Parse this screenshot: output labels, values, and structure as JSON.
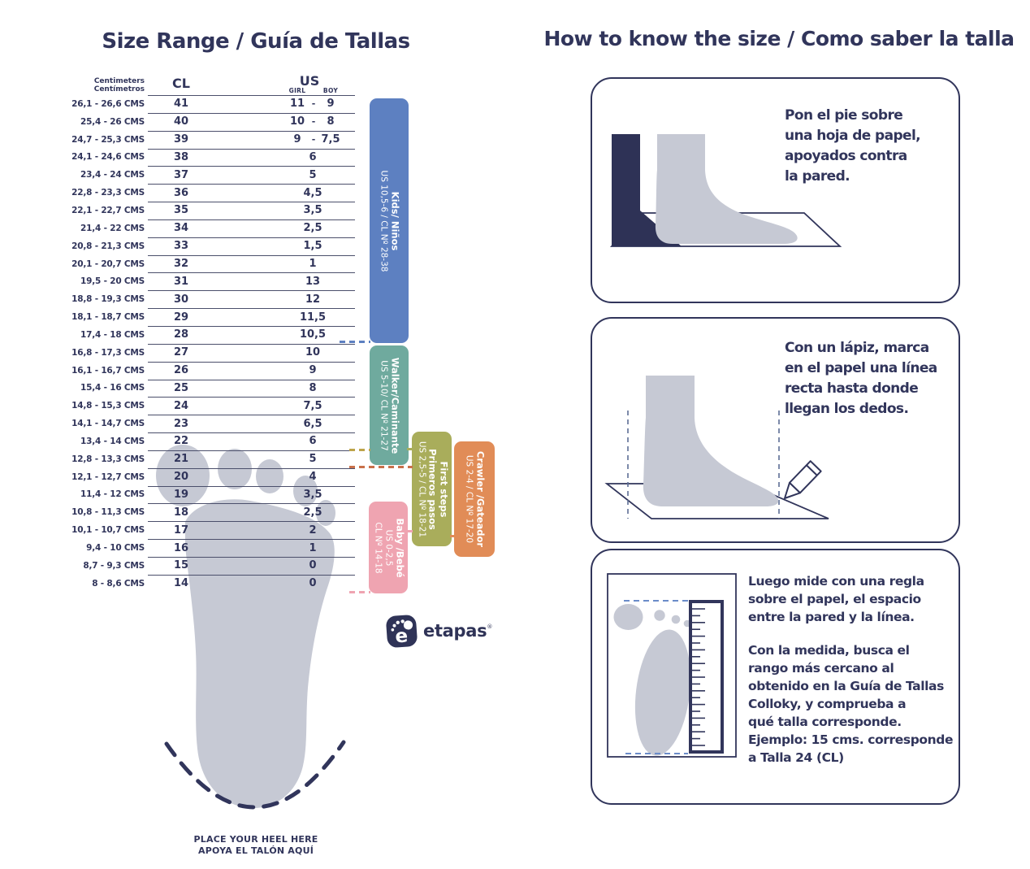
{
  "left": {
    "title": "Size Range / Guía de Tallas",
    "table": {
      "header": {
        "cm_en": "Centimeters",
        "cm_es": "Centímetros",
        "cl": "CL",
        "us": "US",
        "girl": "GIRL",
        "boy": "BOY",
        "girl_boy_sep": "-"
      },
      "rows": [
        {
          "cms": "26,1 - 26,6 CMS",
          "cl": "41",
          "girl": "11",
          "boy": "9"
        },
        {
          "cms": "25,4 - 26 CMS",
          "cl": "40",
          "girl": "10",
          "boy": "8"
        },
        {
          "cms": "24,7 - 25,3 CMS",
          "cl": "39",
          "girl": "9",
          "boy": "7,5"
        },
        {
          "cms": "24,1 - 24,6 CMS",
          "cl": "38",
          "us": "6"
        },
        {
          "cms": "23,4 - 24 CMS",
          "cl": "37",
          "us": "5"
        },
        {
          "cms": "22,8 - 23,3 CMS",
          "cl": "36",
          "us": "4,5"
        },
        {
          "cms": "22,1 - 22,7 CMS",
          "cl": "35",
          "us": "3,5"
        },
        {
          "cms": "21,4 - 22 CMS",
          "cl": "34",
          "us": "2,5"
        },
        {
          "cms": "20,8 -  21,3 CMS",
          "cl": "33",
          "us": "1,5"
        },
        {
          "cms": "20,1 - 20,7 CMS",
          "cl": "32",
          "us": "1"
        },
        {
          "cms": "19,5 - 20 CMS",
          "cl": "31",
          "us": "13"
        },
        {
          "cms": "18,8 - 19,3 CMS",
          "cl": "30",
          "us": "12"
        },
        {
          "cms": "18,1 - 18,7 CMS",
          "cl": "29",
          "us": "11,5"
        },
        {
          "cms": "17,4 - 18 CMS",
          "cl": "28",
          "us": "10,5"
        },
        {
          "cms": "16,8 - 17,3 CMS",
          "cl": "27",
          "us": "10"
        },
        {
          "cms": "16,1 - 16,7 CMS",
          "cl": "26",
          "us": "9"
        },
        {
          "cms": "15,4 - 16 CMS",
          "cl": "25",
          "us": "8"
        },
        {
          "cms": "14,8 - 15,3 CMS",
          "cl": "24",
          "us": "7,5"
        },
        {
          "cms": "14,1  - 14,7 CMS",
          "cl": "23",
          "us": "6,5"
        },
        {
          "cms": "13,4 - 14 CMS",
          "cl": "22",
          "us": "6"
        },
        {
          "cms": "12,8 -  13,3 CMS",
          "cl": "21",
          "us": "5"
        },
        {
          "cms": "12,1 - 12,7 CMS",
          "cl": "20",
          "us": "4"
        },
        {
          "cms": "11,4 - 12 CMS",
          "cl": "19",
          "us": "3,5"
        },
        {
          "cms": "10,8 - 11,3 CMS",
          "cl": "18",
          "us": "2,5"
        },
        {
          "cms": "10,1 - 10,7 CMS",
          "cl": "17",
          "us": "2"
        },
        {
          "cms": "9,4 - 10 CMS",
          "cl": "16",
          "us": "1"
        },
        {
          "cms": "8,7 - 9,3 CMS",
          "cl": "15",
          "us": "0"
        },
        {
          "cms": "8 - 8,6 CMS",
          "cl": "14",
          "us": "0"
        }
      ]
    },
    "bands": [
      {
        "id": "kids",
        "color": "#5d80c1",
        "lines": [
          {
            "text": "Kids/ Niños",
            "bold": true
          },
          {
            "text": "US 10,5-6 / CL Nº 28-38",
            "bold": false
          }
        ]
      },
      {
        "id": "walker",
        "color": "#6faa9e",
        "lines": [
          {
            "text": "Walker/Caminante",
            "bold": true
          },
          {
            "text": "US 5-10/ CL Nº 21-27",
            "bold": false
          }
        ]
      },
      {
        "id": "first-steps",
        "color": "#a9ad5b",
        "lines": [
          {
            "text": "First steps",
            "bold": true
          },
          {
            "text": "Primeros pasos",
            "bold": true
          },
          {
            "text": "US 2,5-5 / CL Nº 18-21",
            "bold": false
          }
        ]
      },
      {
        "id": "crawler",
        "color": "#e18c57",
        "lines": [
          {
            "text": "Crawler /Gateador",
            "bold": true
          },
          {
            "text": "US 2-4 / CL Nº 17-20",
            "bold": false
          }
        ]
      },
      {
        "id": "baby",
        "color": "#efa4b1",
        "lines": [
          {
            "text": "Baby /Bebé",
            "bold": true
          },
          {
            "text": "US 0-2,5",
            "bold": false
          },
          {
            "text": "CL Nº 14-18",
            "bold": false
          }
        ]
      }
    ],
    "heel_note_line1": "PLACE YOUR HEEL HERE",
    "heel_note_line2": "APOYA EL TALÓN AQUÍ",
    "logo": {
      "letter": "e",
      "text": "etapas",
      "mark": "®"
    }
  },
  "right": {
    "title": "How to know the size / Como saber la talla",
    "steps": [
      {
        "lines": [
          "Pon el pie sobre",
          "una hoja de papel,",
          "apoyados contra",
          "la pared."
        ]
      },
      {
        "lines": [
          "Con un lápiz, marca",
          "en el papel una línea",
          "recta hasta donde",
          "llegan los dedos."
        ]
      },
      {
        "lines": [
          "Luego mide con una regla",
          "sobre el papel, el espacio",
          "entre la pared y la línea."
        ],
        "lines2": [
          "Con la medida, busca el",
          "rango más cercano al",
          "obtenido en la Guía de Tallas",
          "Colloky, y comprueba a",
          "qué talla corresponde.",
          "Ejemplo:  15 cms. corresponde",
          "a Talla 24 (CL)"
        ]
      }
    ]
  },
  "colors": {
    "navy": "#31355b",
    "line_color": "#4b4f6b",
    "foot_gray": "#c6c9d4",
    "kids_blue": "#5d80c1",
    "walker_teal": "#6faa9e",
    "first_steps_olive": "#a9ad5b",
    "crawler_orange": "#e18c57",
    "baby_pink": "#efa4b1",
    "dash_olive": "#bda44a",
    "dash_orange": "#c9704a",
    "ruler_dash_blue": "#6b8cc9",
    "logo_navy": "#2f3357"
  }
}
